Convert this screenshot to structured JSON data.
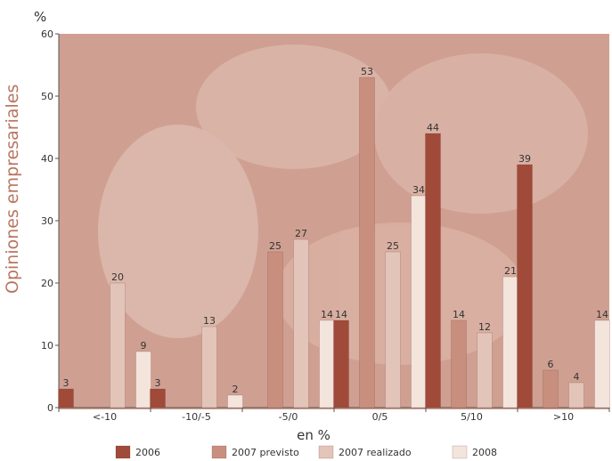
{
  "chart_data": {
    "type": "bar",
    "title": "Opiniones empresariales",
    "ylabel": "%",
    "xlabel": "en %",
    "ylim": [
      0,
      60
    ],
    "yticks": [
      0,
      10,
      20,
      30,
      40,
      50,
      60
    ],
    "categories": [
      "<-10",
      "-10/-5",
      "-5/0",
      "0/5",
      "5/10",
      ">10"
    ],
    "series": [
      {
        "name": "2006",
        "color": "#a04a3a",
        "values": [
          3,
          3,
          0,
          14,
          44,
          39
        ]
      },
      {
        "name": "2007 previsto",
        "color": "#c88f7e",
        "values": [
          0,
          0,
          25,
          53,
          14,
          6
        ]
      },
      {
        "name": "2007 realizado",
        "color": "#e2c4b9",
        "values": [
          20,
          13,
          27,
          25,
          12,
          4
        ]
      },
      {
        "name": "2008",
        "color": "#f3e4dc",
        "values": [
          9,
          2,
          14,
          34,
          21,
          14
        ]
      }
    ],
    "legend_position": "bottom",
    "grid": false
  },
  "colors": {
    "plot_background": "#cfa092",
    "title_color": "#b97560"
  }
}
